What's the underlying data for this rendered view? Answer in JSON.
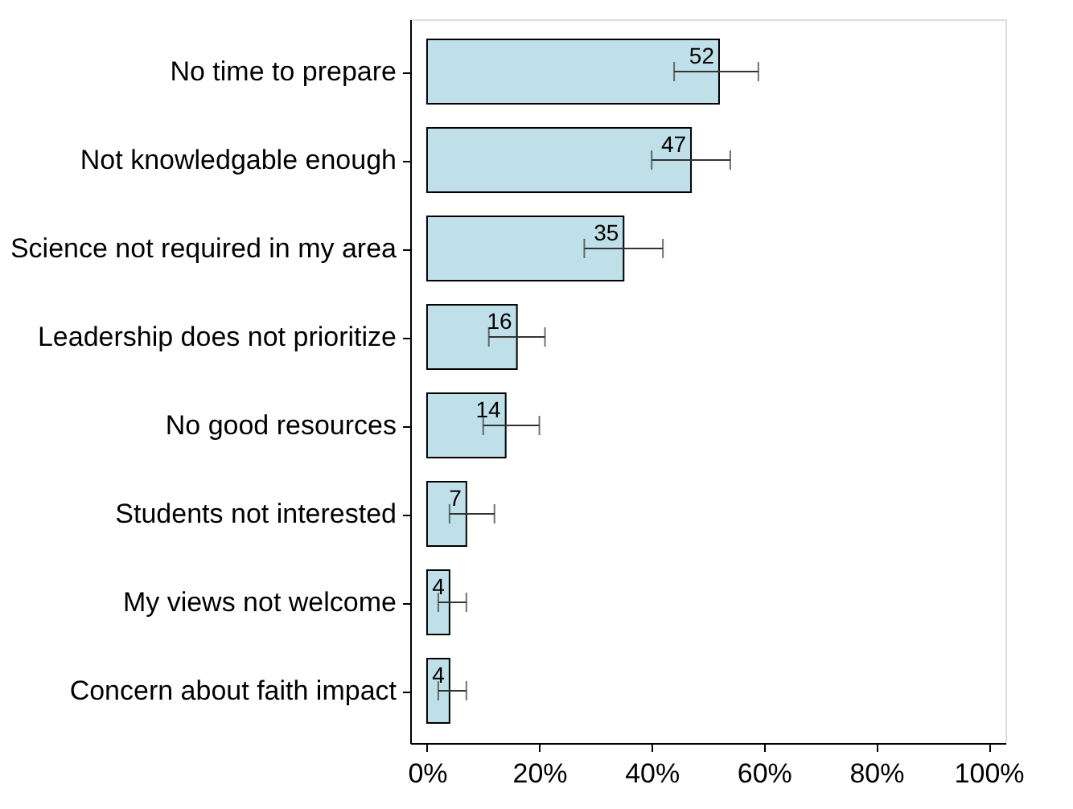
{
  "chart_data": {
    "type": "bar",
    "orientation": "horizontal",
    "categories": [
      "No time to prepare",
      "Not knowledgable enough",
      "Science not required in my area",
      "Leadership does not prioritize",
      "No good resources",
      "Students not interested",
      "My views not welcome",
      "Concern about faith impact"
    ],
    "values": [
      52,
      47,
      35,
      16,
      14,
      7,
      4,
      4
    ],
    "errors": [
      [
        44,
        59
      ],
      [
        40,
        54
      ],
      [
        28,
        42
      ],
      [
        11,
        21
      ],
      [
        10,
        20
      ],
      [
        4,
        12
      ],
      [
        2,
        7
      ],
      [
        2,
        7
      ]
    ],
    "color": "#bfe0e8",
    "data_labels": true,
    "xlim": [
      -3,
      103
    ],
    "xticks": [
      {
        "value": 0,
        "label": "0%"
      },
      {
        "value": 20,
        "label": "20%"
      },
      {
        "value": 40,
        "label": "40%"
      },
      {
        "value": 60,
        "label": "60%"
      },
      {
        "value": 80,
        "label": "80%"
      },
      {
        "value": 100,
        "label": "100%"
      }
    ],
    "grid": false
  }
}
